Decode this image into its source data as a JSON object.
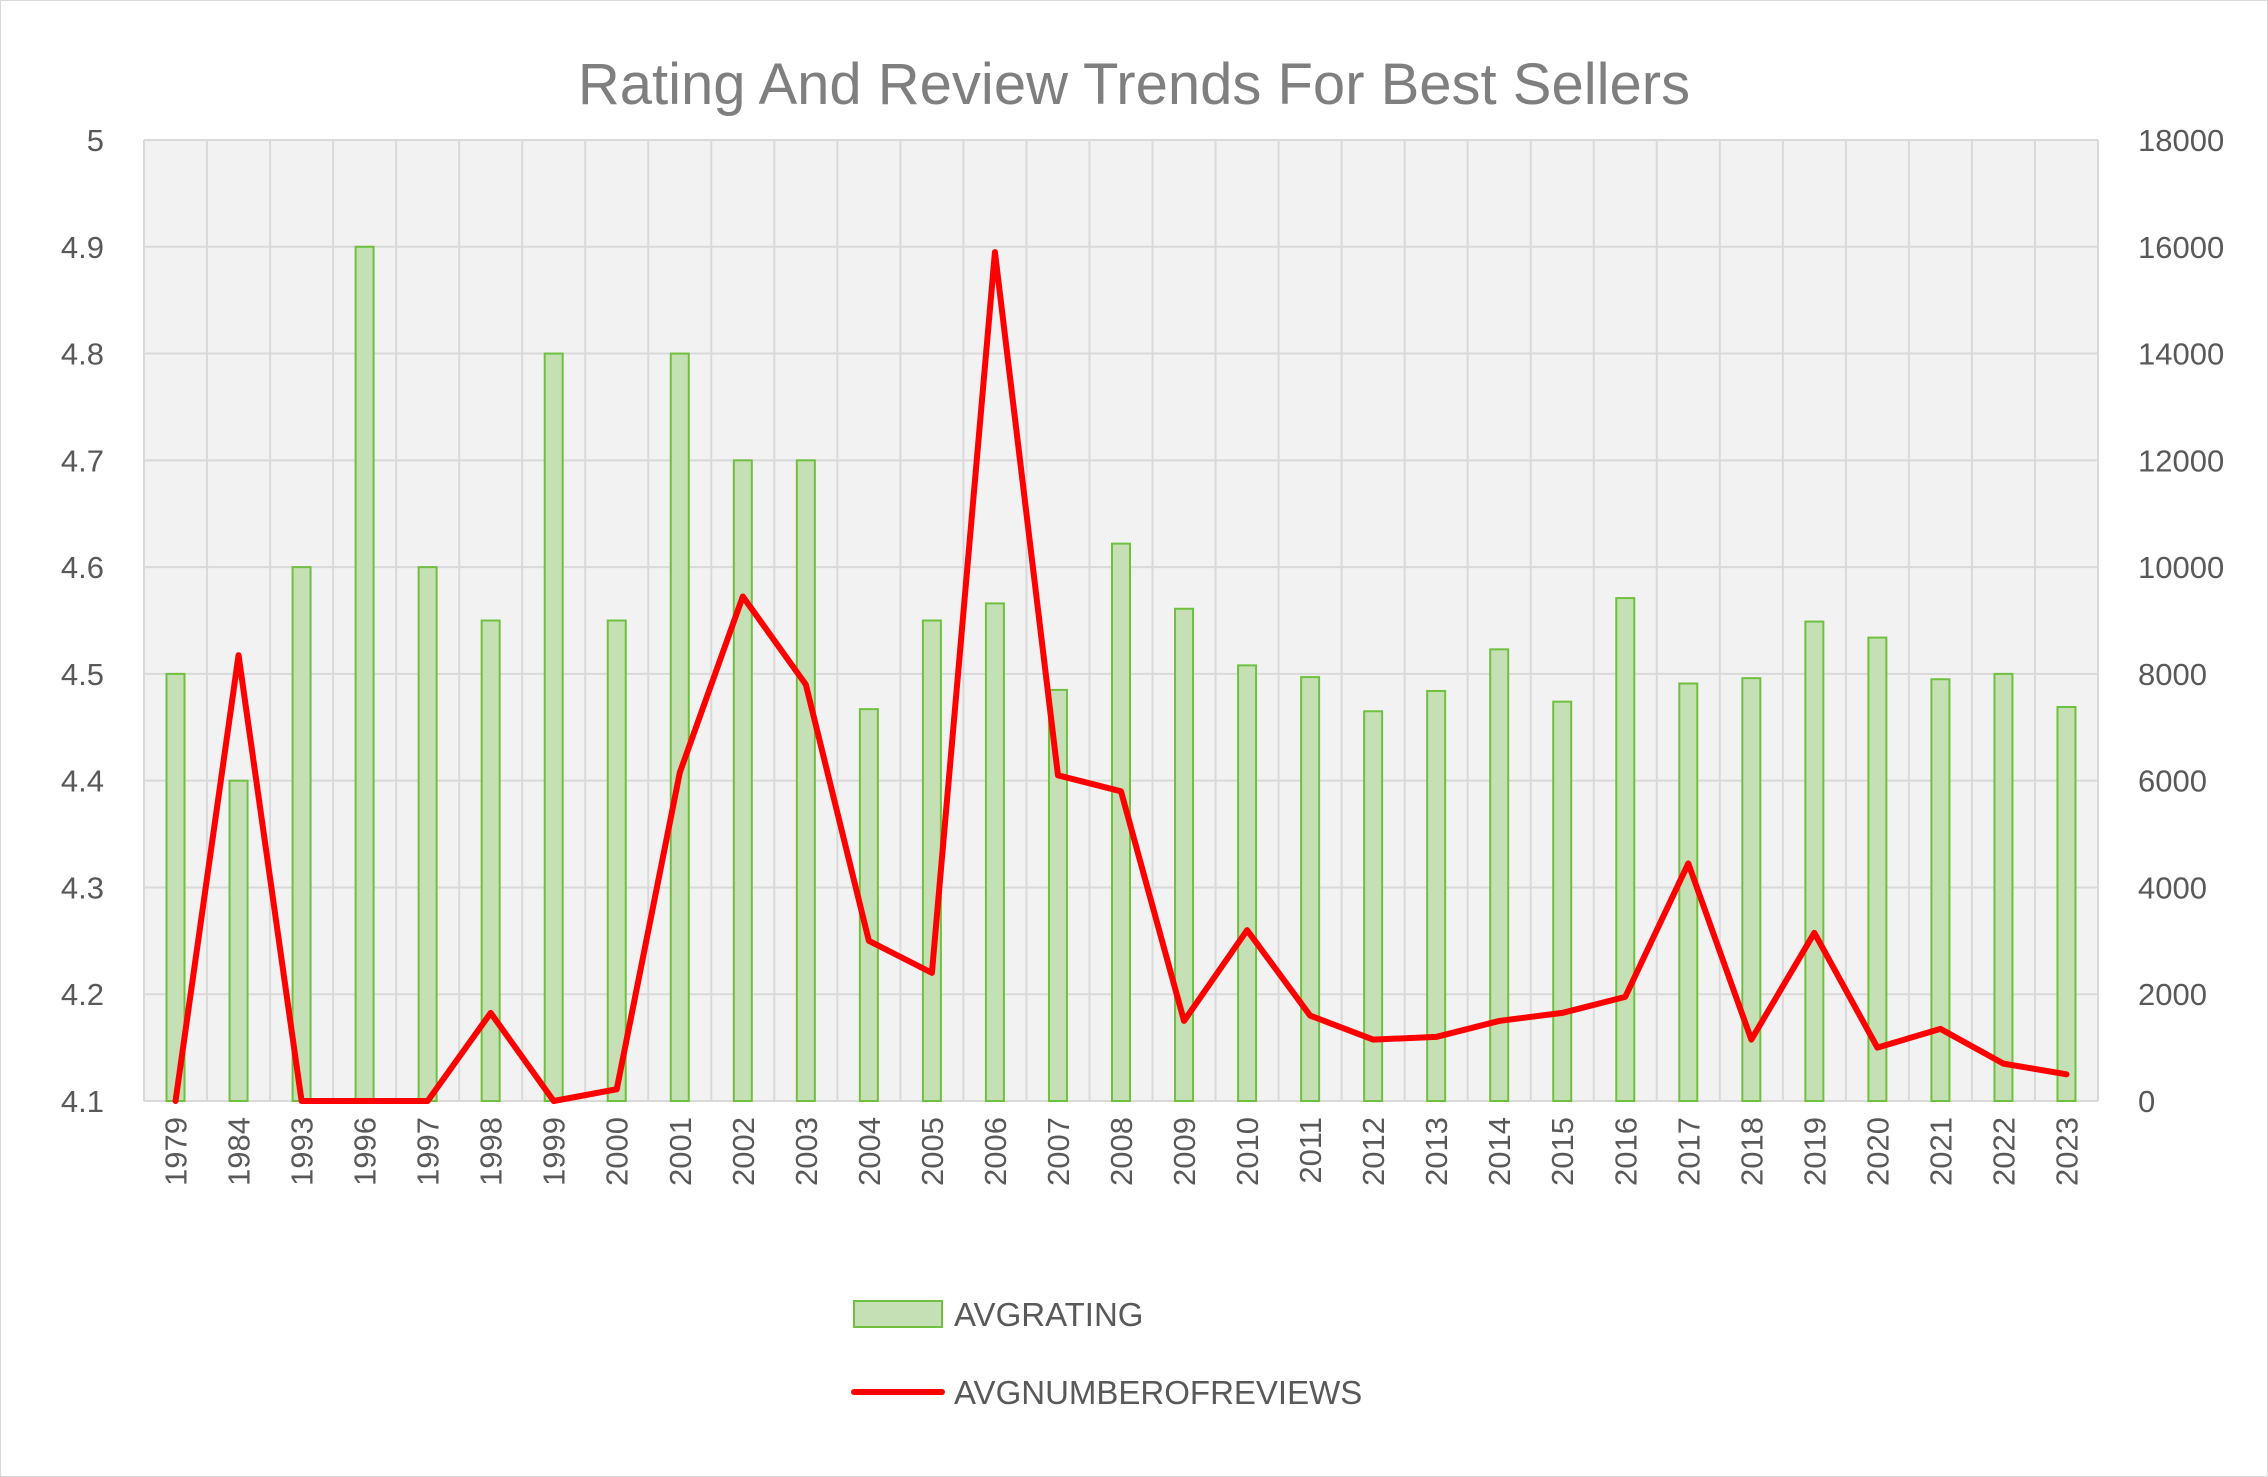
{
  "chart_data": {
    "type": "bar",
    "title": "Rating And Review Trends For Best Sellers",
    "categories": [
      "1979",
      "1984",
      "1993",
      "1996",
      "1997",
      "1998",
      "1999",
      "2000",
      "2001",
      "2002",
      "2003",
      "2004",
      "2005",
      "2006",
      "2007",
      "2008",
      "2009",
      "2010",
      "2011",
      "2012",
      "2013",
      "2014",
      "2015",
      "2016",
      "2017",
      "2018",
      "2019",
      "2020",
      "2021",
      "2022",
      "2023"
    ],
    "series": [
      {
        "name": "AVGRATING",
        "type": "bar",
        "axis": "left",
        "color": "#c5e0b4",
        "border_color": "#70c040",
        "values": [
          4.5,
          4.4,
          4.6,
          4.9,
          4.6,
          4.55,
          4.8,
          4.55,
          4.8,
          4.7,
          4.7,
          4.467,
          4.55,
          4.566,
          4.485,
          4.622,
          4.561,
          4.508,
          4.497,
          4.465,
          4.484,
          4.523,
          4.474,
          4.571,
          4.491,
          4.496,
          4.549,
          4.534,
          4.495,
          4.5,
          4.469
        ]
      },
      {
        "name": "AVGNUMBEROFREVIEWS",
        "type": "line",
        "axis": "right",
        "color": "#ff0000",
        "values": [
          0,
          8350,
          0,
          0,
          0,
          1650,
          0,
          220,
          6150,
          9450,
          7800,
          3000,
          2400,
          15900,
          6100,
          5800,
          1500,
          3200,
          1600,
          1150,
          1200,
          1500,
          1650,
          1950,
          4450,
          1150,
          3150,
          1000,
          1350,
          700,
          500
        ]
      }
    ],
    "y_left": {
      "min": 4.1,
      "max": 5.0,
      "ticks": [
        "4.1",
        "4.2",
        "4.3",
        "4.4",
        "4.5",
        "4.6",
        "4.7",
        "4.8",
        "4.9",
        "5"
      ]
    },
    "y_right": {
      "min": 0,
      "max": 18000,
      "ticks": [
        "0",
        "2000",
        "4000",
        "6000",
        "8000",
        "10000",
        "12000",
        "14000",
        "16000",
        "18000"
      ]
    },
    "grid": true,
    "plot_background": "#f2f2f2",
    "grid_color": "#d9d9d9",
    "legend": {
      "placement": "bottom",
      "entries": [
        "AVGRATING",
        "AVGNUMBEROFREVIEWS"
      ]
    }
  }
}
